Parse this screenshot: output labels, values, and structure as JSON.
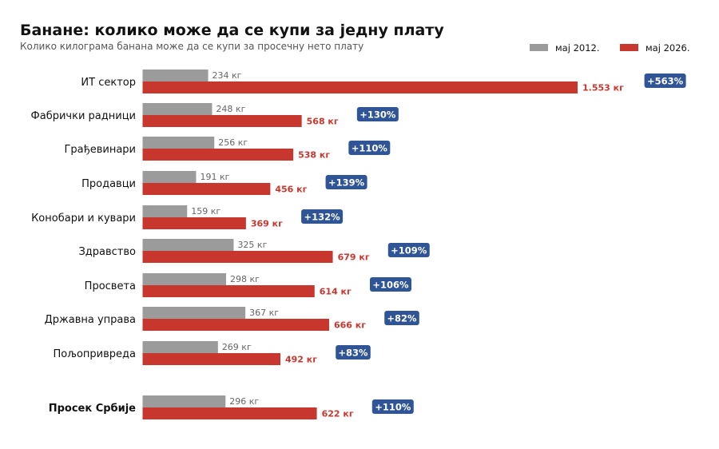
{
  "chart_data": {
    "type": "bar",
    "orientation": "horizontal",
    "title": "Банане: колико може да се купи за једну плату",
    "subtitle": "Колико килограма банана може да се купи за просечну нето плату",
    "legend_position": "top-right",
    "grid": false,
    "categories": [
      "ИТ сектор",
      "Фабрички радници",
      "Грађевинари",
      "Продавци",
      "Конобари и кувари",
      "Здравство",
      "Просвета",
      "Државна управа",
      "Пољопривреда",
      "Просек Србије"
    ],
    "highlighted_category": "Просек Србије",
    "series": [
      {
        "name": "мај 2012.",
        "color": "#9b9b9b",
        "values": [
          234,
          248,
          256,
          191,
          159,
          325,
          298,
          367,
          269,
          296
        ],
        "labels": [
          "234 кг",
          "248 кг",
          "256 кг",
          "191 кг",
          "159 кг",
          "325 кг",
          "298 кг",
          "367 кг",
          "269 кг",
          "296 кг"
        ]
      },
      {
        "name": "мај 2026.",
        "color": "#c8372d",
        "values": [
          1553,
          568,
          538,
          456,
          369,
          679,
          614,
          666,
          492,
          622
        ],
        "labels": [
          "1.553 кг",
          "568 кг",
          "538 кг",
          "456 кг",
          "369 кг",
          "679 кг",
          "614 кг",
          "666 кг",
          "492 кг",
          "622 кг"
        ]
      }
    ],
    "changes": [
      "+563%",
      "+130%",
      "+110%",
      "+139%",
      "+132%",
      "+109%",
      "+106%",
      "+82%",
      "+83%",
      "+110%"
    ],
    "badge_color": "#2f5597"
  }
}
